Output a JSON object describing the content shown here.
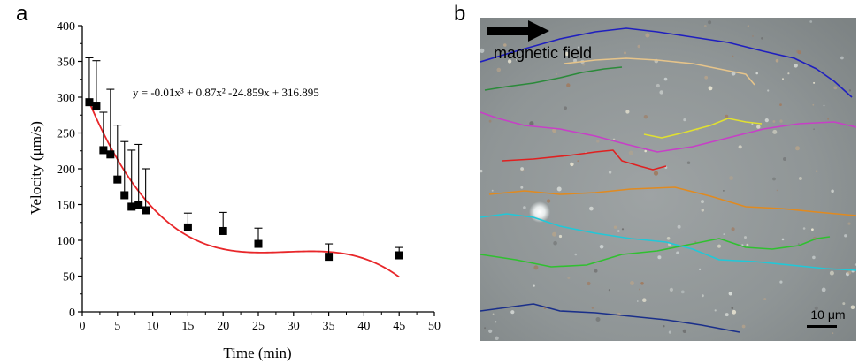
{
  "panels": {
    "a_label": "a",
    "b_label": "b"
  },
  "chart_data": {
    "type": "scatter",
    "xlabel": "Time (min)",
    "ylabel": "Velocity (μm/s)",
    "xlim": [
      0,
      50
    ],
    "ylim": [
      0,
      400
    ],
    "xticks": [
      "0",
      "5",
      "10",
      "15",
      "20",
      "25",
      "30",
      "35",
      "40",
      "45",
      "50"
    ],
    "yticks": [
      "0",
      "50",
      "100",
      "150",
      "200",
      "250",
      "300",
      "350",
      "400"
    ],
    "grid": false,
    "x": [
      1,
      2,
      3,
      4,
      5,
      6,
      7,
      8,
      9,
      15,
      20,
      25,
      35,
      45
    ],
    "y": [
      293,
      287,
      226,
      220,
      185,
      163,
      147,
      150,
      142,
      118,
      113,
      95,
      77,
      79
    ],
    "err_upper": [
      355,
      351,
      279,
      311,
      261,
      238,
      226,
      234,
      200,
      138,
      139,
      117,
      95,
      90
    ],
    "fit": {
      "equation": "y = -0.01x³ + 0.87x² -24.859x + 316.895",
      "coefficients": [
        -0.01,
        0.87,
        -24.859,
        316.895
      ],
      "x_range": [
        1,
        45
      ],
      "color": "#e8272a"
    },
    "marker_color": "#000000"
  },
  "micrograph": {
    "arrow_label": "magnetic field",
    "scale_bar_label": "10 μm",
    "trajectory_colors": [
      "#1f1fbf",
      "#e6c48a",
      "#2b8a3a",
      "#c73fc7",
      "#e0e030",
      "#e02020",
      "#e08a20",
      "#20c8d8",
      "#30c030",
      "#1a2f8a"
    ]
  }
}
